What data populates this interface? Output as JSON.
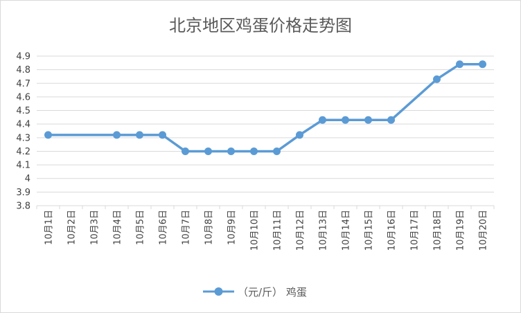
{
  "chart_data": {
    "type": "line",
    "title": "北京地区鸡蛋价格走势图",
    "categories": [
      "10月1日",
      "10月2日",
      "10月3日",
      "10月4日",
      "10月5日",
      "10月6日",
      "10月7日",
      "10月8日",
      "10月9日",
      "10月10日",
      "10月11日",
      "10月12日",
      "10月13日",
      "10月14日",
      "10月15日",
      "10月16日",
      "10月17日",
      "10月18日",
      "10月19日",
      "10月20日"
    ],
    "series": [
      {
        "name": "（元/斤） 鸡蛋",
        "values": [
          4.32,
          null,
          null,
          4.32,
          4.32,
          4.32,
          4.2,
          4.2,
          4.2,
          4.2,
          4.2,
          4.32,
          4.43,
          4.43,
          4.43,
          4.43,
          null,
          4.73,
          4.84,
          4.84
        ],
        "color": "#5b9bd5"
      }
    ],
    "ylim": [
      3.8,
      4.9
    ],
    "yticks": [
      "3.8",
      "3.9",
      "4",
      "4.1",
      "4.2",
      "4.3",
      "4.4",
      "4.5",
      "4.6",
      "4.7",
      "4.8",
      "4.9"
    ],
    "grid": true,
    "legend": "bottom",
    "xlabel": "",
    "ylabel": ""
  }
}
